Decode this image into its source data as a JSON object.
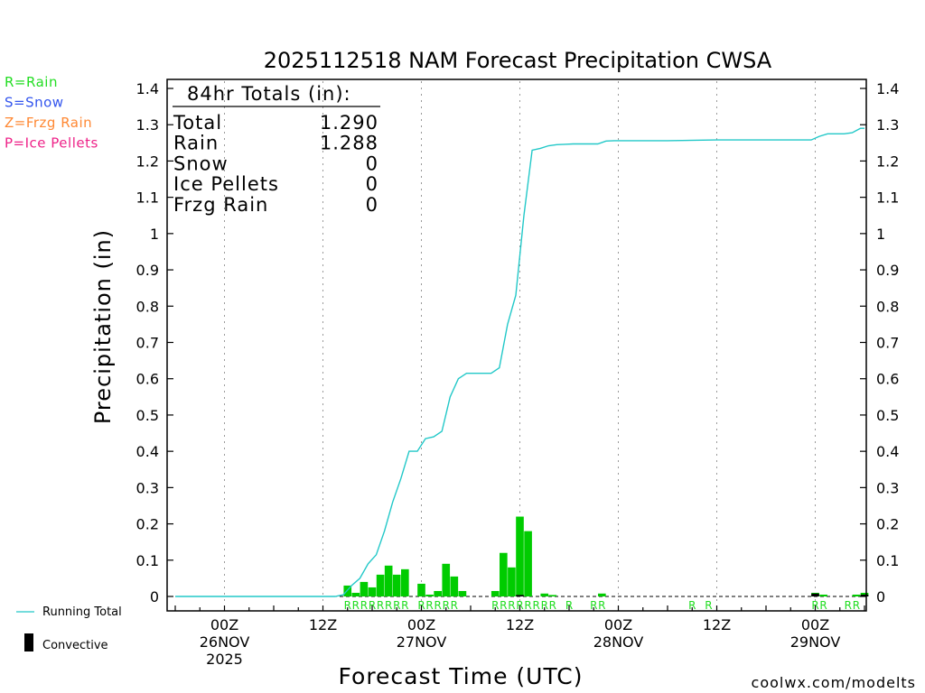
{
  "chart_data": {
    "type": "bar",
    "title": "2025112518 NAM Forecast Precipitation CWSA",
    "xlabel": "Forecast Time (UTC)",
    "ylabel": "Precipitation (in)",
    "ylim": [
      0,
      1.4
    ],
    "yticks": [
      "0",
      "0.1",
      "0.2",
      "0.3",
      "0.4",
      "0.5",
      "0.6",
      "0.7",
      "0.8",
      "0.9",
      "1",
      "1.1",
      "1.2",
      "1.3",
      "1.4"
    ],
    "x_unit": "forecast hour",
    "xlim": [
      0,
      84
    ],
    "xticks": [
      {
        "hour": 6,
        "label1": "00Z",
        "label2": "26NOV",
        "label3": "2025"
      },
      {
        "hour": 18,
        "label1": "12Z",
        "label2": "",
        "label3": ""
      },
      {
        "hour": 30,
        "label1": "00Z",
        "label2": "27NOV",
        "label3": ""
      },
      {
        "hour": 42,
        "label1": "12Z",
        "label2": "",
        "label3": ""
      },
      {
        "hour": 54,
        "label1": "00Z",
        "label2": "28NOV",
        "label3": ""
      },
      {
        "hour": 66,
        "label1": "12Z",
        "label2": "",
        "label3": ""
      },
      {
        "hour": 78,
        "label1": "00Z",
        "label2": "29NOV",
        "label3": ""
      }
    ],
    "legend": {
      "types": [
        {
          "text": "R=Rain",
          "color": "#22dd22"
        },
        {
          "text": "S=Snow",
          "color": "#3355ee"
        },
        {
          "text": "Z=Frzg Rain",
          "color": "#ff8833"
        },
        {
          "text": "P=Ice Pellets",
          "color": "#ee2288"
        }
      ],
      "running_total_label": "Running Total",
      "convective_label": "Convective"
    },
    "totals": {
      "header": "84hr Totals (in):",
      "rows": [
        {
          "label": "Total",
          "value": "1.290"
        },
        {
          "label": "Rain",
          "value": "1.288"
        },
        {
          "label": "Snow",
          "value": "0"
        },
        {
          "label": "Ice Pellets",
          "value": "0"
        },
        {
          "label": "Frzg Rain",
          "value": "0"
        }
      ]
    },
    "series": [
      {
        "name": "Hourly Precipitation",
        "color": "#00cc00",
        "points": [
          {
            "hour": 21,
            "value": 0.03
          },
          {
            "hour": 22,
            "value": 0.01
          },
          {
            "hour": 23,
            "value": 0.04
          },
          {
            "hour": 24,
            "value": 0.025
          },
          {
            "hour": 25,
            "value": 0.06
          },
          {
            "hour": 26,
            "value": 0.085
          },
          {
            "hour": 27,
            "value": 0.06
          },
          {
            "hour": 28,
            "value": 0.075
          },
          {
            "hour": 30,
            "value": 0.035
          },
          {
            "hour": 31,
            "value": 0.005
          },
          {
            "hour": 32,
            "value": 0.015
          },
          {
            "hour": 33,
            "value": 0.09
          },
          {
            "hour": 34,
            "value": 0.055
          },
          {
            "hour": 35,
            "value": 0.015
          },
          {
            "hour": 39,
            "value": 0.015
          },
          {
            "hour": 40,
            "value": 0.12
          },
          {
            "hour": 41,
            "value": 0.08
          },
          {
            "hour": 42,
            "value": 0.22
          },
          {
            "hour": 43,
            "value": 0.18
          },
          {
            "hour": 45,
            "value": 0.008
          },
          {
            "hour": 46,
            "value": 0.004
          },
          {
            "hour": 52,
            "value": 0.008
          },
          {
            "hour": 78,
            "value": 0.01
          },
          {
            "hour": 79,
            "value": 0.005
          },
          {
            "hour": 83,
            "value": 0.005
          },
          {
            "hour": 84,
            "value": 0.01
          }
        ]
      },
      {
        "name": "Convective",
        "color": "#000000",
        "points": [
          {
            "hour": 42,
            "value": 0.004
          },
          {
            "hour": 78,
            "value": 0.008
          },
          {
            "hour": 84,
            "value": 0.005
          }
        ]
      },
      {
        "name": "Running Total",
        "color": "#22c8c8",
        "type": "line",
        "x": [
          0,
          19.5,
          20.5,
          21.5,
          22.5,
          23.5,
          24.5,
          25.5,
          26.5,
          27.5,
          28.5,
          29.5,
          30.5,
          31.5,
          32.5,
          33.5,
          34.5,
          35.5,
          36.5,
          37.5,
          38.5,
          39.5,
          40.5,
          41.5,
          42.5,
          43.5,
          44.5,
          45.5,
          46.5,
          47.5,
          48.5,
          49.5,
          50.5,
          51.5,
          52.5,
          53.5,
          60,
          66,
          72,
          77.5,
          78.5,
          79.5,
          80.5,
          81.5,
          82.5,
          83.5,
          84
        ],
        "y": [
          0,
          0,
          0.005,
          0.03,
          0.05,
          0.09,
          0.115,
          0.18,
          0.26,
          0.325,
          0.4,
          0.4,
          0.435,
          0.44,
          0.455,
          0.55,
          0.6,
          0.615,
          0.615,
          0.615,
          0.615,
          0.63,
          0.75,
          0.83,
          1.05,
          1.23,
          1.235,
          1.242,
          1.245,
          1.246,
          1.247,
          1.247,
          1.247,
          1.247,
          1.255,
          1.256,
          1.256,
          1.258,
          1.258,
          1.258,
          1.268,
          1.275,
          1.275,
          1.275,
          1.278,
          1.29,
          1.29
        ]
      }
    ],
    "type_markers": [
      {
        "hour": 21,
        "text": "R"
      },
      {
        "hour": 22,
        "text": "R"
      },
      {
        "hour": 23,
        "text": "R"
      },
      {
        "hour": 24,
        "text": "R"
      },
      {
        "hour": 25,
        "text": "R"
      },
      {
        "hour": 26,
        "text": "R"
      },
      {
        "hour": 27,
        "text": "R"
      },
      {
        "hour": 28,
        "text": "R"
      },
      {
        "hour": 30,
        "text": "R"
      },
      {
        "hour": 31,
        "text": "R"
      },
      {
        "hour": 32,
        "text": "R"
      },
      {
        "hour": 33,
        "text": "R"
      },
      {
        "hour": 34,
        "text": "R"
      },
      {
        "hour": 39,
        "text": "R"
      },
      {
        "hour": 40,
        "text": "R"
      },
      {
        "hour": 41,
        "text": "R"
      },
      {
        "hour": 42,
        "text": "R"
      },
      {
        "hour": 43,
        "text": "R"
      },
      {
        "hour": 44,
        "text": "R"
      },
      {
        "hour": 45,
        "text": "R"
      },
      {
        "hour": 46,
        "text": "R"
      },
      {
        "hour": 48,
        "text": "R"
      },
      {
        "hour": 51,
        "text": "R"
      },
      {
        "hour": 52,
        "text": "R"
      },
      {
        "hour": 63,
        "text": "R"
      },
      {
        "hour": 65,
        "text": "R"
      },
      {
        "hour": 78,
        "text": "R"
      },
      {
        "hour": 79,
        "text": "R"
      },
      {
        "hour": 82,
        "text": "R"
      },
      {
        "hour": 83,
        "text": "R"
      }
    ],
    "watermark": "coolwx.com/modelts",
    "watermark_color": "#dd2222",
    "grid": "vertical dotted at 00Z and 12Z"
  }
}
